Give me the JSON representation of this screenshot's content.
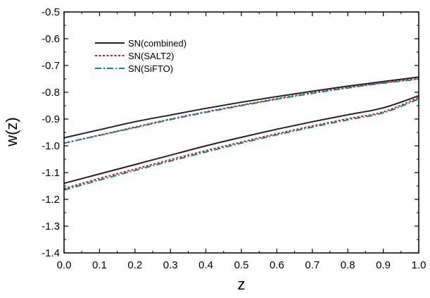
{
  "chart_data": {
    "type": "line",
    "title": "",
    "xlabel": "z",
    "ylabel": "w(z)",
    "xlim": [
      0.0,
      1.0
    ],
    "ylim": [
      -1.4,
      -0.5
    ],
    "grid": false,
    "legend_position": "top-left",
    "x_ticks": [
      "0.0",
      "0.1",
      "0.2",
      "0.3",
      "0.4",
      "0.5",
      "0.6",
      "0.7",
      "0.8",
      "0.9",
      "1.0"
    ],
    "y_ticks": [
      "-0.5",
      "-0.6",
      "-0.7",
      "-0.8",
      "-0.9",
      "-1.0",
      "-1.1",
      "-1.2",
      "-1.3",
      "-1.4"
    ],
    "x": [
      0.0,
      0.1,
      0.2,
      0.3,
      0.4,
      0.5,
      0.6,
      0.7,
      0.8,
      0.9,
      1.0
    ],
    "series": [
      {
        "name": "SN(combined)",
        "color": "#222222",
        "style": "solid",
        "curves": [
          [
            -0.97,
            -0.94,
            -0.91,
            -0.885,
            -0.86,
            -0.837,
            -0.816,
            -0.796,
            -0.777,
            -0.76,
            -0.743
          ],
          [
            -1.14,
            -1.105,
            -1.07,
            -1.035,
            -1.0,
            -0.968,
            -0.938,
            -0.91,
            -0.884,
            -0.858,
            -0.813
          ]
        ]
      },
      {
        "name": "SN(SALT2)",
        "color": "#dd1111",
        "style": "dotted",
        "curves": [
          [
            -0.99,
            -0.96,
            -0.93,
            -0.9,
            -0.873,
            -0.848,
            -0.824,
            -0.802,
            -0.782,
            -0.764,
            -0.749
          ],
          [
            -1.16,
            -1.122,
            -1.087,
            -1.052,
            -1.018,
            -0.986,
            -0.955,
            -0.926,
            -0.899,
            -0.873,
            -0.82
          ]
        ]
      },
      {
        "name": "SN(SiFTO)",
        "color": "#158a8a",
        "style": "dashdot",
        "curves": [
          [
            -0.99,
            -0.961,
            -0.932,
            -0.902,
            -0.875,
            -0.85,
            -0.826,
            -0.804,
            -0.784,
            -0.766,
            -0.751
          ],
          [
            -1.165,
            -1.128,
            -1.092,
            -1.057,
            -1.023,
            -0.99,
            -0.959,
            -0.93,
            -0.903,
            -0.877,
            -0.825
          ]
        ]
      }
    ]
  }
}
